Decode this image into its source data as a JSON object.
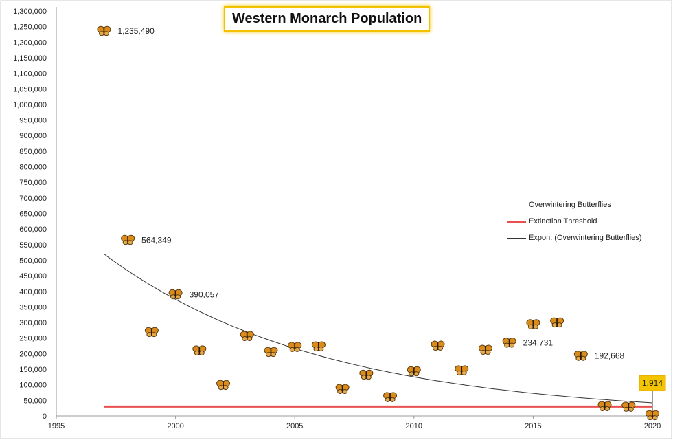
{
  "chart_data": {
    "type": "scatter",
    "title": "Western Monarch Population",
    "xlim": [
      1995,
      2020
    ],
    "ylim": [
      0,
      1300000
    ],
    "x_ticks": [
      1995,
      2000,
      2005,
      2010,
      2015,
      2020
    ],
    "y_tick_step": 50000,
    "grid": false,
    "legend_placement": "right",
    "marker_icon": "butterfly-icon",
    "series": [
      {
        "name": "Overwintering Butterflies",
        "x": [
          1997,
          1998,
          1999,
          2000,
          2001,
          2002,
          2003,
          2004,
          2005,
          2006,
          2007,
          2008,
          2009,
          2010,
          2011,
          2012,
          2013,
          2014,
          2015,
          2016,
          2017,
          2018,
          2019,
          2020
        ],
        "y": [
          1235490,
          564349,
          269000,
          390057,
          210000,
          99000,
          256000,
          205000,
          221000,
          223000,
          86000,
          132000,
          60000,
          143000,
          225000,
          146000,
          212000,
          234731,
          294000,
          300000,
          192668,
          31000,
          29000,
          1914
        ]
      },
      {
        "name": "Extinction Threshold",
        "x": [
          1997,
          2020
        ],
        "y": [
          30000,
          30000
        ],
        "color": "#e8504f"
      },
      {
        "name": "Expon. (Overwintering Butterflies)",
        "x": [
          1997,
          2020
        ],
        "y": [
          520000,
          42000
        ],
        "color": "#333333"
      }
    ],
    "data_labels": [
      {
        "x": 1997,
        "text": "1,235,490"
      },
      {
        "x": 1998,
        "text": "564,349"
      },
      {
        "x": 2000,
        "text": "390,057"
      },
      {
        "x": 2014,
        "text": "234,731"
      },
      {
        "x": 2017,
        "text": "192,668"
      },
      {
        "x": 2020,
        "text": "1,914",
        "highlight": "#f5c400"
      }
    ]
  }
}
